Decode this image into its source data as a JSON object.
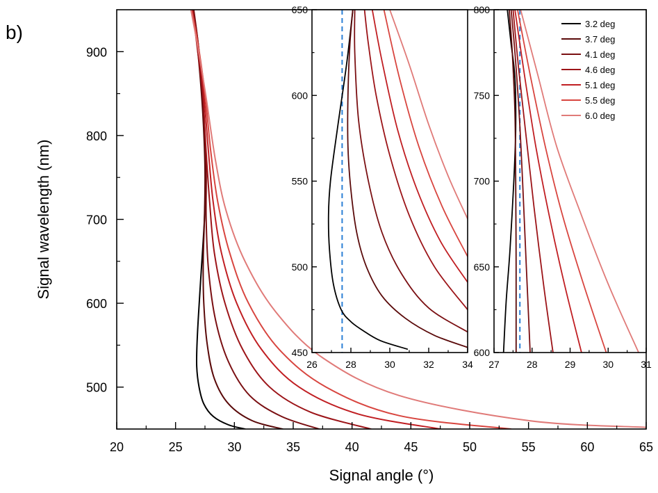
{
  "panel_label": "b)",
  "colors": {
    "series": [
      "#000000",
      "#5a0a0a",
      "#7a0f12",
      "#9c1418",
      "#c01e22",
      "#d8453f",
      "#e07a78"
    ],
    "reference_line": "#2b7fd6"
  },
  "chart_data": [
    {
      "type": "line",
      "id": "main",
      "xlabel": "Signal angle (°)",
      "ylabel": "Signal wavelength (nm)",
      "xlim": [
        20,
        65
      ],
      "ylim": [
        450,
        950
      ],
      "xticks": [
        20,
        25,
        30,
        35,
        40,
        45,
        50,
        55,
        60,
        65
      ],
      "yticks": [
        500,
        600,
        700,
        800,
        900
      ],
      "grid": false,
      "series": [
        {
          "name": "3.2 deg",
          "x": [
            30.9,
            29.5,
            28.2,
            27.4,
            27.0,
            26.8,
            26.85,
            27.1,
            27.45,
            27.55,
            27.4,
            27.0,
            26.5
          ],
          "y": [
            450,
            455,
            465,
            480,
            500,
            525,
            560,
            620,
            700,
            760,
            820,
            900,
            950
          ]
        },
        {
          "name": "3.7 deg",
          "x": [
            34.1,
            31.5,
            29.5,
            28.3,
            27.7,
            27.4,
            27.35,
            27.45,
            27.5,
            27.3,
            26.9,
            26.5
          ],
          "y": [
            450,
            460,
            480,
            510,
            550,
            600,
            650,
            700,
            760,
            830,
            900,
            950
          ]
        },
        {
          "name": "4.1 deg",
          "x": [
            37.2,
            34.0,
            31.3,
            29.5,
            28.4,
            27.8,
            27.6,
            27.6,
            27.4,
            27.0,
            26.55
          ],
          "y": [
            450,
            465,
            490,
            530,
            580,
            640,
            700,
            760,
            830,
            900,
            950
          ]
        },
        {
          "name": "4.6 deg",
          "x": [
            41.6,
            36.5,
            33.0,
            30.7,
            29.2,
            28.3,
            27.9,
            27.6,
            27.3,
            26.8,
            26.45
          ],
          "y": [
            450,
            470,
            500,
            545,
            600,
            660,
            720,
            780,
            850,
            910,
            950
          ]
        },
        {
          "name": "5.1 deg",
          "x": [
            47.5,
            40.5,
            35.5,
            32.3,
            30.2,
            28.9,
            28.2,
            27.8,
            27.4,
            26.9,
            26.4
          ],
          "y": [
            450,
            468,
            500,
            545,
            600,
            660,
            720,
            780,
            850,
            910,
            950
          ]
        },
        {
          "name": "5.5 deg",
          "x": [
            53.5,
            44.0,
            37.8,
            33.8,
            31.2,
            29.6,
            28.6,
            28.0,
            27.5,
            26.9,
            26.35
          ],
          "y": [
            450,
            466,
            500,
            545,
            600,
            660,
            720,
            780,
            850,
            910,
            950
          ]
        },
        {
          "name": "6.0 deg",
          "x": [
            65.0,
            55.0,
            44.0,
            37.5,
            33.5,
            30.9,
            29.3,
            28.4,
            27.6,
            26.9,
            26.3
          ],
          "y": [
            452,
            460,
            490,
            535,
            590,
            650,
            710,
            770,
            845,
            905,
            950
          ]
        }
      ]
    },
    {
      "type": "line",
      "id": "inset-left",
      "xlim": [
        26,
        34
      ],
      "ylim": [
        450,
        650
      ],
      "xticks": [
        26,
        28,
        30,
        32,
        34
      ],
      "yticks": [
        450,
        500,
        550,
        600,
        650
      ],
      "reference_x": 27.55,
      "series": [
        {
          "name": "3.2 deg",
          "x": [
            30.9,
            29.5,
            28.6,
            28.0,
            27.5,
            27.1,
            26.9,
            26.85,
            26.95,
            27.3,
            27.8,
            28.1
          ],
          "y": [
            452,
            457,
            463,
            468,
            475,
            490,
            510,
            530,
            550,
            580,
            620,
            650
          ]
        },
        {
          "name": "3.7 deg",
          "x": [
            34.0,
            32.3,
            30.8,
            29.6,
            28.8,
            28.3,
            28.0,
            27.85,
            27.85,
            27.95,
            28.1
          ],
          "y": [
            453,
            460,
            470,
            483,
            500,
            520,
            545,
            570,
            600,
            630,
            650
          ]
        },
        {
          "name": "4.1 deg",
          "x": [
            34.0,
            32.0,
            30.6,
            29.6,
            28.9,
            28.4,
            28.2,
            28.2
          ],
          "y": [
            462,
            476,
            496,
            520,
            550,
            585,
            625,
            650
          ]
        },
        {
          "name": "4.6 deg",
          "x": [
            34.0,
            32.3,
            31.0,
            30.0,
            29.3,
            28.9,
            28.7
          ],
          "y": [
            475,
            500,
            530,
            565,
            600,
            630,
            650
          ]
        },
        {
          "name": "5.1 deg",
          "x": [
            34.0,
            32.6,
            31.4,
            30.4,
            29.6,
            29.1
          ],
          "y": [
            491,
            515,
            545,
            580,
            620,
            650
          ]
        },
        {
          "name": "5.5 deg",
          "x": [
            34.0,
            32.7,
            31.5,
            30.5,
            29.7
          ],
          "y": [
            506,
            535,
            570,
            610,
            650
          ]
        },
        {
          "name": "6.0 deg",
          "x": [
            34.0,
            33.0,
            32.0,
            31.0,
            30.0
          ],
          "y": [
            528,
            553,
            583,
            618,
            650
          ]
        }
      ]
    },
    {
      "type": "line",
      "id": "inset-right",
      "xlim": [
        27,
        31
      ],
      "ylim": [
        600,
        800
      ],
      "xticks": [
        27,
        28,
        29,
        30,
        31
      ],
      "yticks": [
        600,
        650,
        700,
        750,
        800
      ],
      "reference_x": 27.68,
      "series": [
        {
          "name": "3.2 deg",
          "x": [
            27.25,
            27.32,
            27.42,
            27.52,
            27.57,
            27.55,
            27.45,
            27.35
          ],
          "y": [
            600,
            630,
            660,
            700,
            730,
            760,
            780,
            800
          ]
        },
        {
          "name": "3.7 deg",
          "x": [
            27.58,
            27.58,
            27.57,
            27.55,
            27.48,
            27.4
          ],
          "y": [
            600,
            650,
            700,
            740,
            775,
            800
          ]
        },
        {
          "name": "4.1 deg",
          "x": [
            27.95,
            27.85,
            27.75,
            27.66,
            27.55,
            27.45
          ],
          "y": [
            600,
            650,
            700,
            740,
            775,
            800
          ]
        },
        {
          "name": "4.6 deg",
          "x": [
            28.55,
            28.3,
            28.05,
            27.85,
            27.65,
            27.5
          ],
          "y": [
            600,
            640,
            685,
            725,
            765,
            800
          ]
        },
        {
          "name": "5.1 deg",
          "x": [
            29.3,
            28.85,
            28.45,
            28.1,
            27.8,
            27.55
          ],
          "y": [
            600,
            640,
            680,
            720,
            762,
            800
          ]
        },
        {
          "name": "5.5 deg",
          "x": [
            29.95,
            29.35,
            28.8,
            28.35,
            27.95,
            27.62
          ],
          "y": [
            600,
            640,
            680,
            720,
            762,
            800
          ]
        },
        {
          "name": "6.0 deg",
          "x": [
            30.8,
            30.0,
            29.3,
            28.65,
            28.15,
            27.7
          ],
          "y": [
            600,
            640,
            680,
            720,
            762,
            800
          ]
        }
      ]
    }
  ],
  "legend": {
    "placement": "top-right",
    "entries": [
      "3.2 deg",
      "3.7 deg",
      "4.1 deg",
      "4.6 deg",
      "5.1 deg",
      "5.5 deg",
      "6.0 deg"
    ]
  }
}
